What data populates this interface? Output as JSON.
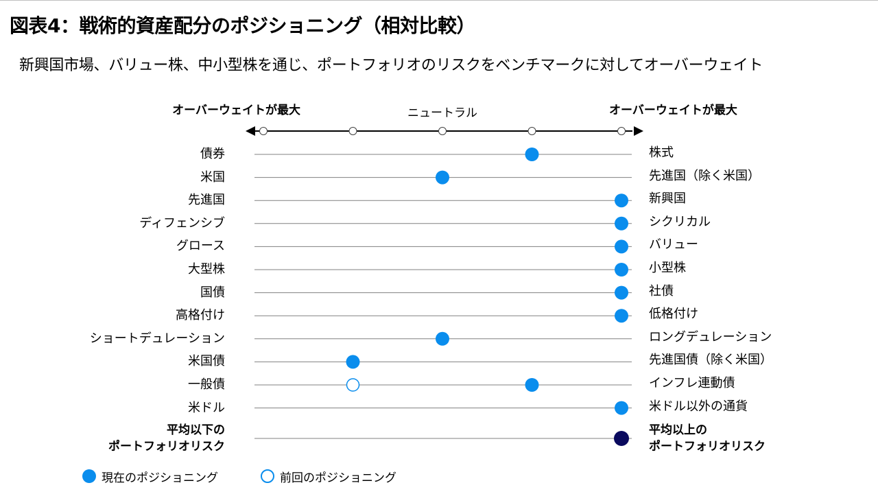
{
  "title": "図表4：戦術的資産配分のポジショニング（相対比較）",
  "subtitle": "新興国市場、バリュー株、中小型株を通じ、ポートフォリオのリスクをベンチマークに対してオーバーウェイト",
  "colors": {
    "current": "#0a8ded",
    "previous_edge": "#0a8ded",
    "risk": "#0a0a5e",
    "line": "#808080",
    "axis": "#000000"
  },
  "chart_data": {
    "type": "scatter",
    "scale_labels": {
      "left": "オーバーウェイトが最大",
      "center": "ニュートラル",
      "right": "オーバーウェイトが最大"
    },
    "scale_points": [
      -2,
      -1,
      0,
      1,
      2
    ],
    "rows": [
      {
        "left": "債券",
        "right": "株式",
        "current": 1,
        "previous": null
      },
      {
        "left": "米国",
        "right": "先進国（除く米国）",
        "current": 0,
        "previous": null
      },
      {
        "left": "先進国",
        "right": "新興国",
        "current": 2,
        "previous": null
      },
      {
        "left": "ディフェンシブ",
        "right": "シクリカル",
        "current": 2,
        "previous": null
      },
      {
        "left": "グロース",
        "right": "バリュー",
        "current": 2,
        "previous": null
      },
      {
        "left": "大型株",
        "right": "小型株",
        "current": 2,
        "previous": null
      },
      {
        "left": "国債",
        "right": "社債",
        "current": 2,
        "previous": null
      },
      {
        "left": "高格付け",
        "right": "低格付け",
        "current": 2,
        "previous": null
      },
      {
        "left": "ショートデュレーション",
        "right": "ロングデュレーション",
        "current": 0,
        "previous": null
      },
      {
        "left": "米国債",
        "right": "先進国債（除く米国）",
        "current": -1,
        "previous": null
      },
      {
        "left": "一般債",
        "right": "インフレ連動債",
        "current": 1,
        "previous": -1
      },
      {
        "left": "米ドル",
        "right": "米ドル以外の通貨",
        "current": 2,
        "previous": null
      }
    ],
    "risk_row": {
      "left": [
        "平均以下の",
        "ポートフォリオリスク"
      ],
      "right": [
        "平均以上の",
        "ポートフォリオリスク"
      ],
      "current": 2
    },
    "legend": [
      {
        "key": "current",
        "label": "現在のポジショニング"
      },
      {
        "key": "previous",
        "label": "前回のポジショニング"
      }
    ]
  }
}
